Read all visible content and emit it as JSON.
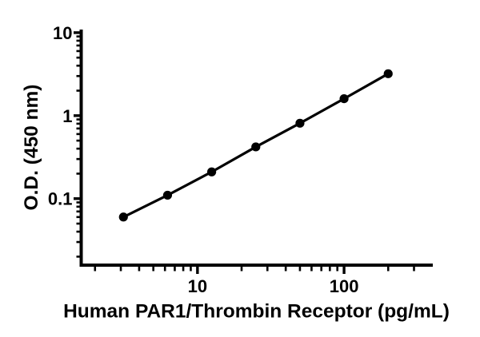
{
  "figure": {
    "background_color": "#ffffff"
  },
  "chart_data": {
    "type": "scatter-line",
    "xlabel": "Human PAR1/Thrombin Receptor (pg/mL)",
    "ylabel": "O.D. (450 nm)",
    "x_scale": "log10",
    "y_scale": "log10",
    "x": [
      3.125,
      6.25,
      12.5,
      25,
      50,
      100,
      200
    ],
    "y": [
      0.06,
      0.11,
      0.21,
      0.42,
      0.81,
      1.6,
      3.2
    ],
    "xlim": [
      1.61,
      403
    ],
    "ylim": [
      0.0158,
      10.9
    ],
    "x_major_ticks": {
      "values": [
        10,
        100
      ],
      "labels": [
        "10",
        "100"
      ]
    },
    "y_major_ticks": {
      "values": [
        10,
        1,
        0.1
      ],
      "labels": [
        "10",
        "1",
        "0.1"
      ]
    },
    "x_minor_ticks": [
      2,
      3,
      4,
      5,
      6,
      7,
      8,
      9,
      20,
      30,
      40,
      50,
      60,
      70,
      80,
      90,
      200,
      300
    ],
    "y_minor_ticks": [
      0.02,
      0.03,
      0.04,
      0.05,
      0.06,
      0.07,
      0.08,
      0.09,
      0.2,
      0.3,
      0.4,
      0.5,
      0.6,
      0.7,
      0.8,
      0.9,
      2,
      3,
      4,
      5,
      6,
      7,
      8,
      9
    ],
    "grid": false,
    "legend_visible": false,
    "marker": "filled-circle",
    "line_style": "solid",
    "marker_color": "#000000",
    "line_color": "#000000",
    "axis_color": "#000000",
    "text_color": "#000000"
  }
}
